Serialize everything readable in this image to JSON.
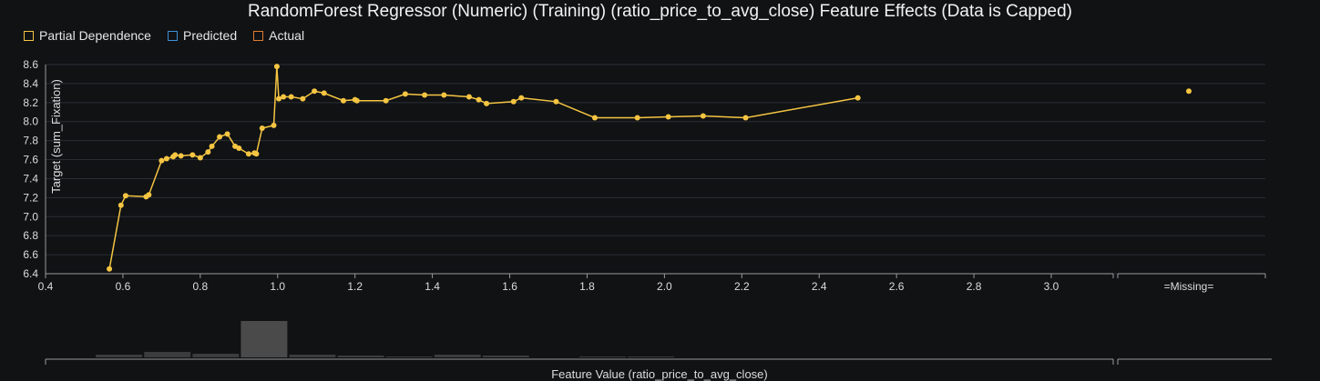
{
  "chart_data": {
    "type": "line",
    "title": "RandomForest Regressor (Numeric) (Training) (ratio_price_to_avg_close) Feature Effects (Data is Capped)",
    "xlabel": "Feature Value (ratio_price_to_avg_close)",
    "ylabel": "Target (sum_Fixation)",
    "xlim": [
      0.4,
      3.0
    ],
    "ylim": [
      6.4,
      8.6
    ],
    "x_ticks": [
      "0.4",
      "0.6",
      "0.8",
      "1.0",
      "1.2",
      "1.4",
      "1.6",
      "1.8",
      "2.0",
      "2.2",
      "2.4",
      "2.6",
      "2.8",
      "3.0"
    ],
    "y_ticks": [
      "6.4",
      "6.6",
      "6.8",
      "7.0",
      "7.2",
      "7.4",
      "7.6",
      "7.8",
      "8.0",
      "8.2",
      "8.4",
      "8.6"
    ],
    "missing_label": "=Missing=",
    "grid": true,
    "legend_position": "top-left",
    "legend": [
      {
        "name": "Partial Dependence",
        "color": "#f5c542"
      },
      {
        "name": "Predicted",
        "color": "#3d8fd6"
      },
      {
        "name": "Actual",
        "color": "#e07b2e"
      }
    ],
    "series": [
      {
        "name": "Partial Dependence",
        "color": "#f5c542",
        "x": [
          0.565,
          0.595,
          0.607,
          0.66,
          0.667,
          0.7,
          0.713,
          0.73,
          0.735,
          0.75,
          0.78,
          0.8,
          0.82,
          0.83,
          0.85,
          0.87,
          0.89,
          0.9,
          0.925,
          0.94,
          0.945,
          0.96,
          0.99,
          0.998,
          1.003,
          1.015,
          1.035,
          1.065,
          1.095,
          1.12,
          1.17,
          1.2,
          1.205,
          1.28,
          1.33,
          1.38,
          1.43,
          1.495,
          1.52,
          1.54,
          1.61,
          1.63,
          1.72,
          1.82,
          1.93,
          2.01,
          2.1,
          2.21,
          2.5
        ],
        "y": [
          6.45,
          7.12,
          7.22,
          7.21,
          7.23,
          7.59,
          7.61,
          7.63,
          7.65,
          7.64,
          7.65,
          7.62,
          7.68,
          7.74,
          7.84,
          7.87,
          7.74,
          7.72,
          7.66,
          7.67,
          7.66,
          7.93,
          7.96,
          8.58,
          8.24,
          8.26,
          8.26,
          8.24,
          8.32,
          8.3,
          8.22,
          8.23,
          8.22,
          8.22,
          8.29,
          8.28,
          8.28,
          8.26,
          8.23,
          8.19,
          8.21,
          8.25,
          8.21,
          8.04,
          8.04,
          8.05,
          8.06,
          8.04,
          8.25
        ]
      }
    ],
    "missing_value": 8.32,
    "histogram": {
      "x_start": [
        0.53,
        0.655,
        0.78,
        0.905,
        1.03,
        1.155,
        1.28,
        1.405,
        1.53,
        1.655,
        1.78,
        1.905
      ],
      "counts": [
        3,
        6,
        4,
        40,
        3,
        2,
        1,
        3,
        2,
        0,
        1,
        1
      ],
      "bin_width": 0.12,
      "missing_count": 0
    }
  }
}
